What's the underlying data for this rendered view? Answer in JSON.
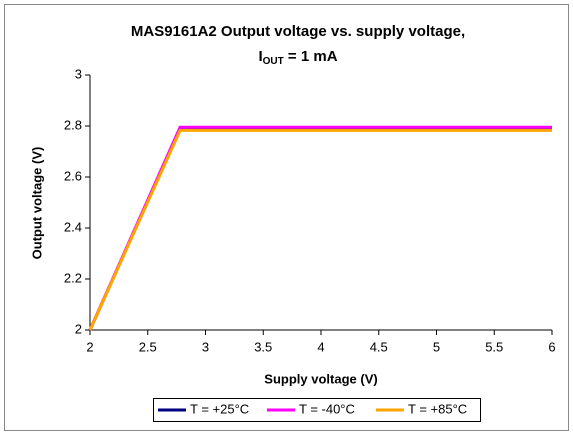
{
  "chart_data": {
    "type": "line",
    "title": {
      "line1": "MAS9161A2 Output voltage vs. supply voltage,",
      "line2": {
        "main": "I",
        "sub": "OUT",
        "rest": " = 1 mA"
      }
    },
    "x_label": "Supply voltage (V)",
    "y_label": "Output voltage (V)",
    "x": [
      2,
      2.78,
      6
    ],
    "series": [
      {
        "name": "T = +25°C",
        "color": "#000080",
        "values": [
          2,
          2.79,
          2.79
        ]
      },
      {
        "name": "T = -40°C",
        "color": "#ff00ff",
        "values": [
          2,
          2.795,
          2.795
        ]
      },
      {
        "name": "T = +85°C",
        "color": "#ffa500",
        "values": [
          2,
          2.783,
          2.783
        ]
      }
    ],
    "xlim": [
      2,
      6
    ],
    "xticks": [
      2,
      2.5,
      3,
      3.5,
      4,
      4.5,
      5,
      5.5,
      6
    ],
    "ylim": [
      2,
      3
    ],
    "yticks": [
      2,
      2.2,
      2.4,
      2.6,
      2.8,
      3
    ],
    "grid": false,
    "legend": "bottom"
  }
}
